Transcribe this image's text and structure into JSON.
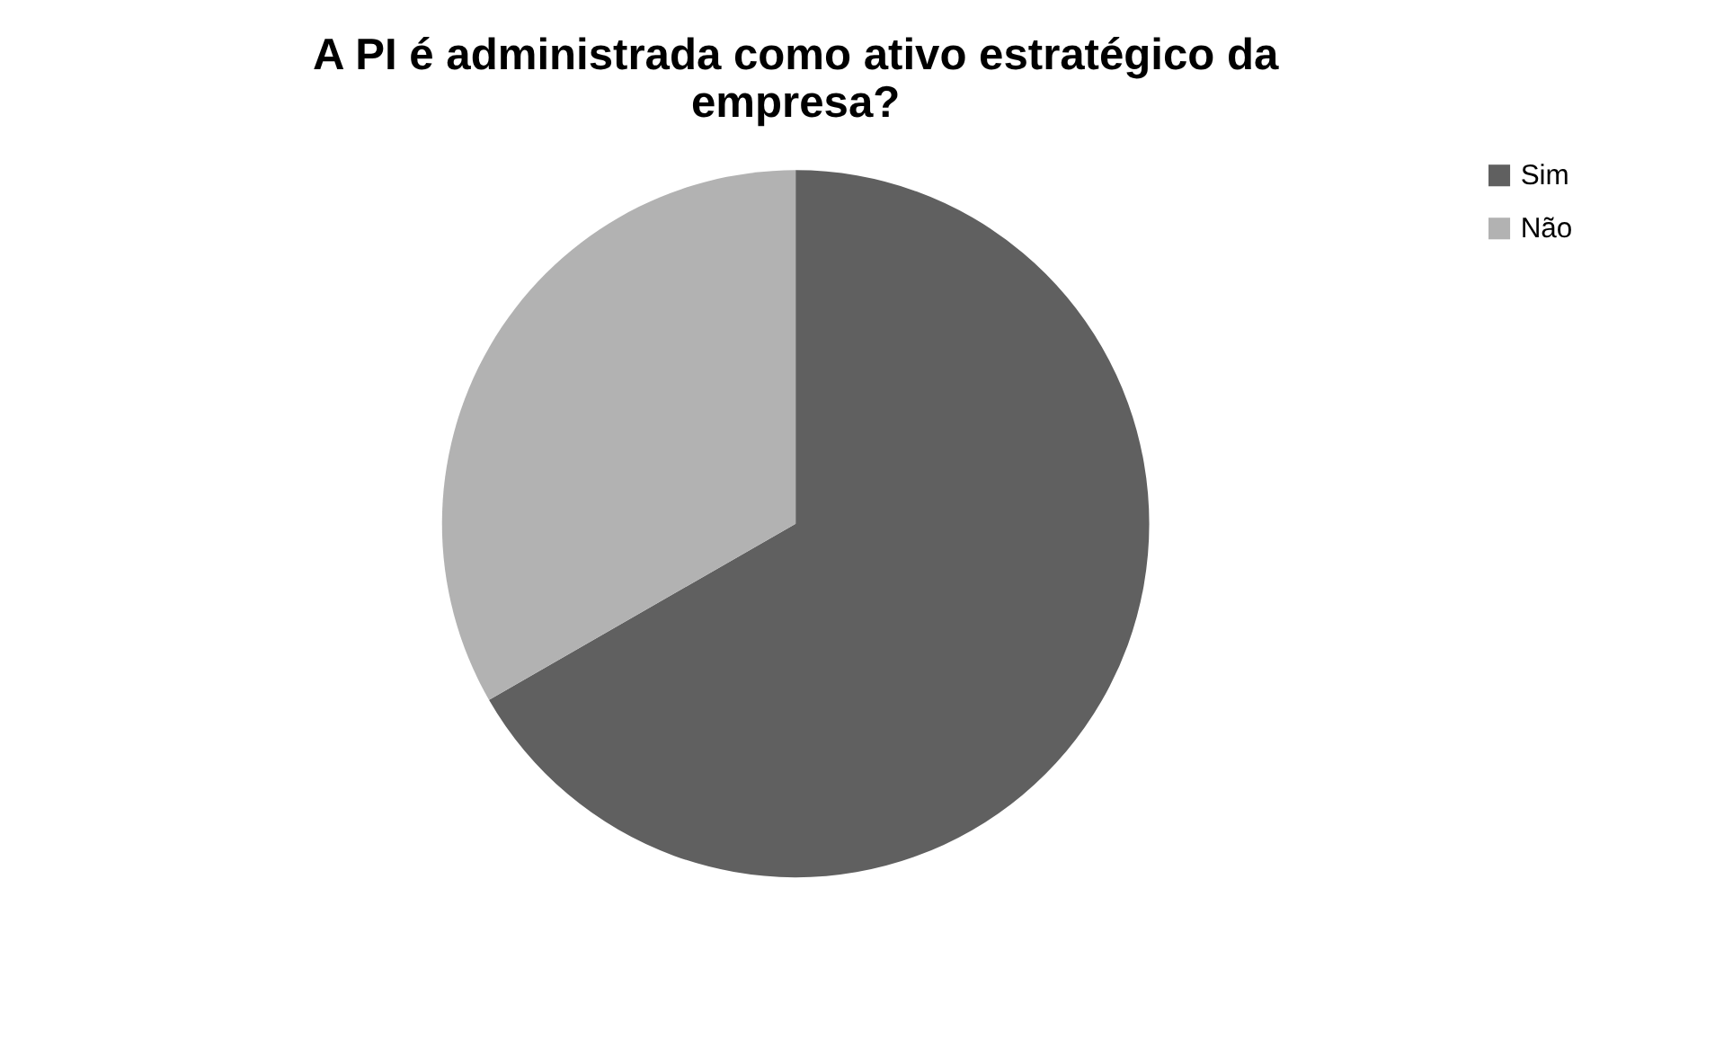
{
  "chart_data": {
    "type": "pie",
    "title": "A PI é administrada como ativo estratégico da empresa?",
    "categories": [
      "Sim",
      "Não"
    ],
    "values": [
      66.7,
      33.3
    ],
    "colors": [
      "#606060",
      "#b2b2b2"
    ],
    "legend": "right"
  }
}
